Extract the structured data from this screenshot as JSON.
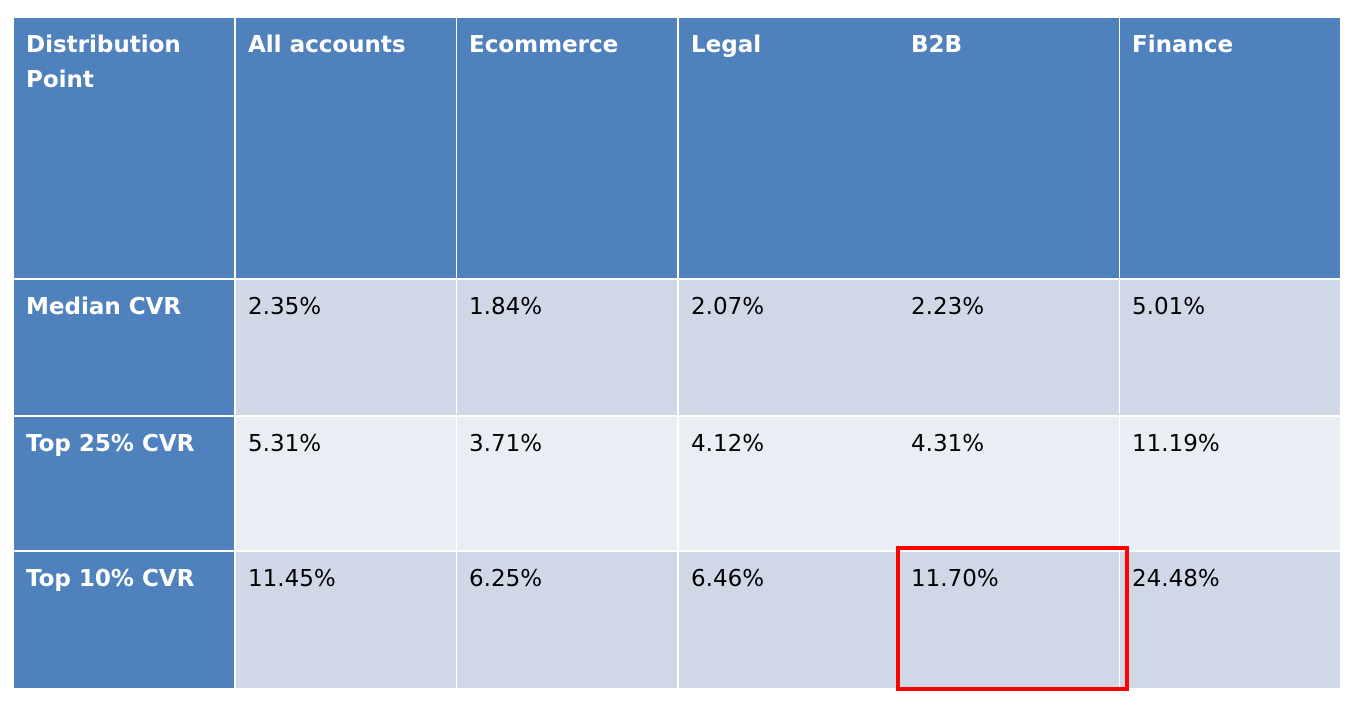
{
  "table": {
    "header": [
      "Distribution Point",
      "All accounts",
      "Ecommerce",
      "Legal",
      "B2B",
      "Finance"
    ],
    "rows": [
      [
        "Median CVR",
        "2.35%",
        "1.84%",
        "2.07%",
        "2.23%",
        "5.01%"
      ],
      [
        "Top 25% CVR",
        "5.31%",
        "3.71%",
        "4.12%",
        "4.31%",
        "11.19%"
      ],
      [
        "Top 10% CVR",
        "11.45%",
        "6.25%",
        "6.46%",
        "11.70%",
        "24.48%"
      ]
    ]
  }
}
